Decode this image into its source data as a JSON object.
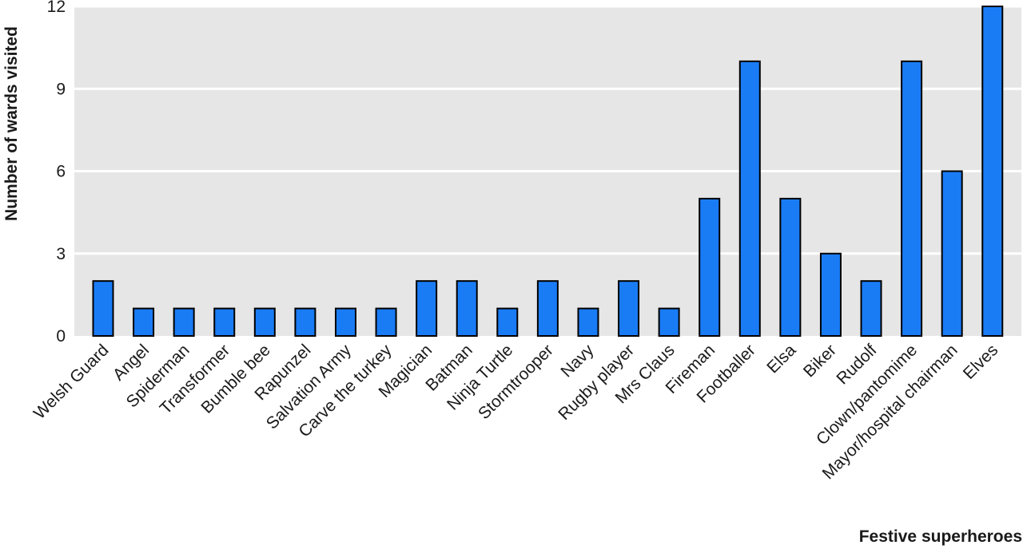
{
  "chart_data": {
    "type": "bar",
    "categories": [
      "Welsh Guard",
      "Angel",
      "Spiderman",
      "Transformer",
      "Bumble bee",
      "Rapunzel",
      "Salvation Army",
      "Carve the turkey",
      "Magician",
      "Batman",
      "Ninja Turtle",
      "Stormtrooper",
      "Navy",
      "Rugby player",
      "Mrs Claus",
      "Fireman",
      "Footballer",
      "Elsa",
      "Biker",
      "Rudolf",
      "Clown/pantomime",
      "Mayor/hospital chairman",
      "Elves"
    ],
    "values": [
      2,
      1,
      1,
      1,
      1,
      1,
      1,
      1,
      2,
      2,
      1,
      2,
      1,
      2,
      1,
      5,
      10,
      5,
      3,
      2,
      10,
      6,
      12
    ],
    "xlabel": "Festive superheroes",
    "ylabel": "Number of wards visited",
    "ylim": [
      0,
      12
    ],
    "yticks": [
      0,
      3,
      6,
      9,
      12
    ],
    "grid": true,
    "colors": {
      "bar": "#1a7cf5",
      "bar_edge": "#000000",
      "plot_background": "#e6e6e6",
      "gridline": "#ffffff"
    }
  }
}
